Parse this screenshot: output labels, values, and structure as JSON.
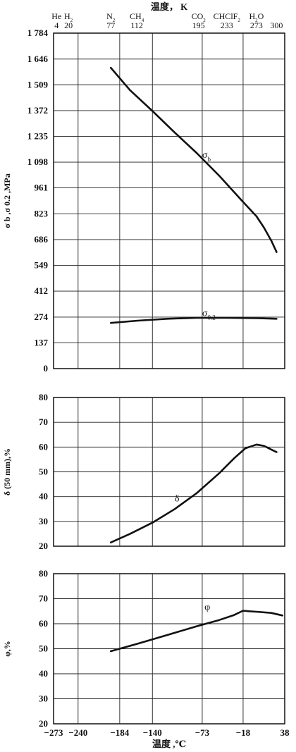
{
  "top_axis": {
    "title": "温度， K",
    "markers": [
      {
        "name": "He",
        "k": "4"
      },
      {
        "name": "H",
        "sub": "2",
        "k": "20"
      },
      {
        "name": "N",
        "sub": "2",
        "k": "77"
      },
      {
        "name": "CH",
        "sub": "4",
        "k": "112"
      },
      {
        "name": "CO",
        "sub": "2",
        "k": "195"
      },
      {
        "name": "CHClF",
        "sub": "2",
        "k": "233"
      },
      {
        "name": "H",
        "sub": "2",
        "tail": "O",
        "k": "273"
      },
      {
        "name": "",
        "k": "300"
      }
    ]
  },
  "bottom_axis": {
    "title": "温度 ,℃",
    "ticks": [
      "−273",
      "−240",
      "−184",
      "−140",
      "−73",
      "−18",
      "38"
    ]
  },
  "chart_data": [
    {
      "type": "line",
      "ylabel": "σ b ,σ 0.2 ,MPa",
      "xlim": [
        -273,
        38
      ],
      "ylim": [
        0,
        1784
      ],
      "yticks": [
        "0",
        "137",
        "274",
        "412",
        "549",
        "686",
        "823",
        "961",
        "1 098",
        "1 235",
        "1 372",
        "1 509",
        "1 646",
        "1 784"
      ],
      "series": [
        {
          "name": "σ b",
          "x": [
            -196,
            -170,
            -140,
            -110,
            -80,
            -50,
            -20,
            0,
            10,
            20,
            27
          ],
          "y": [
            1600,
            1480,
            1370,
            1255,
            1145,
            1025,
            895,
            810,
            750,
            680,
            620
          ]
        },
        {
          "name": "σ 0.2",
          "x": [
            -196,
            -160,
            -120,
            -80,
            -40,
            0,
            27
          ],
          "y": [
            243,
            255,
            265,
            270,
            270,
            268,
            265
          ]
        }
      ],
      "annotations": [
        {
          "text": "σ b",
          "x": -73,
          "y": 1120
        },
        {
          "text": "σ 0.2",
          "x": -73,
          "y": 280
        }
      ]
    },
    {
      "type": "line",
      "ylabel": "δ (50 mm),%",
      "xlim": [
        -273,
        38
      ],
      "ylim": [
        20,
        80
      ],
      "yticks": [
        "20",
        "30",
        "40",
        "50",
        "60",
        "70",
        "80"
      ],
      "series": [
        {
          "name": "δ",
          "x": [
            -196,
            -170,
            -140,
            -110,
            -80,
            -50,
            -30,
            -15,
            0,
            10,
            20,
            27
          ],
          "y": [
            21.5,
            25,
            29.5,
            35,
            41.5,
            49.5,
            55.5,
            59.5,
            61,
            60.5,
            59,
            58
          ]
        }
      ],
      "annotations": [
        {
          "text": "δ",
          "x": -110,
          "y": 38
        }
      ]
    },
    {
      "type": "line",
      "ylabel": "φ,%",
      "xlim": [
        -273,
        38
      ],
      "ylim": [
        20,
        80
      ],
      "yticks": [
        "20",
        "30",
        "40",
        "50",
        "60",
        "70",
        "80"
      ],
      "series": [
        {
          "name": "φ",
          "x": [
            -196,
            -160,
            -120,
            -80,
            -50,
            -30,
            -18,
            -10,
            0,
            20,
            35
          ],
          "y": [
            49,
            52,
            55.5,
            59,
            61.5,
            63.5,
            65.2,
            65,
            64.8,
            64.3,
            63.3
          ]
        }
      ],
      "annotations": [
        {
          "text": "φ",
          "x": -70,
          "y": 65.5
        }
      ]
    }
  ]
}
